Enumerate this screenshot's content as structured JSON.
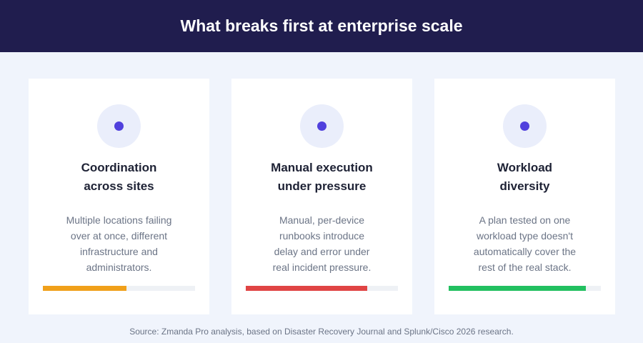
{
  "header": {
    "title": "What breaks first at enterprise scale"
  },
  "cards": [
    {
      "icon": "dot-icon",
      "title_lines": [
        "Coordination",
        "across sites"
      ],
      "desc_lines": [
        "Multiple locations failing",
        "over at once, different",
        "infrastructure and",
        "administrators."
      ],
      "bar_level": 0.55,
      "bar_color": "#f0a01a"
    },
    {
      "icon": "dot-icon",
      "title_lines": [
        "Manual execution",
        "under pressure"
      ],
      "desc_lines": [
        "Manual, per-device",
        "runbooks introduce",
        "delay and error under",
        "real incident pressure."
      ],
      "bar_level": 0.8,
      "bar_color": "#e04444"
    },
    {
      "icon": "dot-icon",
      "title_lines": [
        "Workload",
        "diversity"
      ],
      "desc_lines": [
        "A plan tested on one",
        "workload type doesn't",
        "automatically cover the",
        "rest of the real stack."
      ],
      "bar_level": 0.9,
      "bar_color": "#22c060"
    }
  ],
  "footer": {
    "source": "Source: Zmanda Pro analysis, based on Disaster Recovery Journal and Splunk/Cisco 2026 research."
  },
  "colors": {
    "header_bg": "#201d4e",
    "page_bg": "#f0f4fc",
    "accent": "#5040dd"
  }
}
